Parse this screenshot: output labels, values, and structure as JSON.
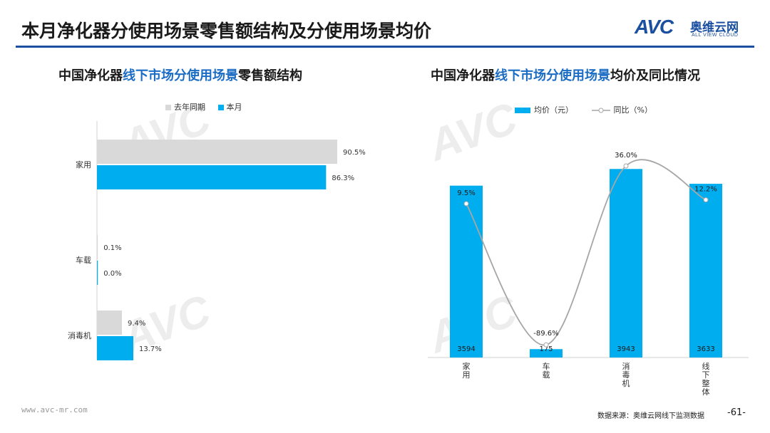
{
  "header": {
    "title": "本月净化器分使用场景零售额结构及分使用场景均价",
    "logo_avc": "AVC",
    "logo_cn": "奥维云网",
    "logo_en": "ALL VIEW CLOUD"
  },
  "colors": {
    "brand": "#1b4fa0",
    "current": "#00aeef",
    "previous": "#d9d9d9",
    "line": "#a6a6a6"
  },
  "left_chart": {
    "title_pre": "中国净化器",
    "title_hl": "线下市场分使用场景",
    "title_post": "零售额结构",
    "legend_prev": "去年同期",
    "legend_curr": "本月"
  },
  "right_chart": {
    "title_pre": "中国净化器",
    "title_hl": "线下市场分使用场景",
    "title_post": "均价及同比情况",
    "legend_bar": "均价（元）",
    "legend_line": "同比（%）"
  },
  "chart_data": [
    {
      "type": "bar",
      "orientation": "horizontal",
      "categories": [
        "家用",
        "车载",
        "消毒机"
      ],
      "series": [
        {
          "name": "去年同期",
          "values": [
            90.5,
            0.1,
            9.4
          ],
          "labels": [
            "90.5%",
            "0.1%",
            "9.4%"
          ]
        },
        {
          "name": "本月",
          "values": [
            86.3,
            0.0,
            13.7
          ],
          "labels": [
            "86.3%",
            "0.0%",
            "13.7%"
          ]
        }
      ],
      "xlim": [
        0,
        100
      ]
    },
    {
      "type": "bar",
      "categories": [
        "家用",
        "车载",
        "消毒机",
        "线下整体"
      ],
      "series": [
        {
          "name": "均价（元）",
          "type": "bar",
          "values": [
            3594,
            175,
            3943,
            3633
          ],
          "labels": [
            "3594",
            "175",
            "3943",
            "3633"
          ]
        },
        {
          "name": "同比（%）",
          "type": "line",
          "values": [
            9.5,
            -89.6,
            36.0,
            12.2
          ],
          "labels": [
            "9.5%",
            "-89.6%",
            "36.0%",
            "12.2%"
          ]
        }
      ],
      "ylim_bar": [
        0,
        4200
      ],
      "ylim_line": [
        -100,
        45
      ]
    }
  ],
  "footer": {
    "url": "www.avc-mr.com",
    "source": "数据来源：奥维云网线下监测数据",
    "page": "-61-"
  }
}
